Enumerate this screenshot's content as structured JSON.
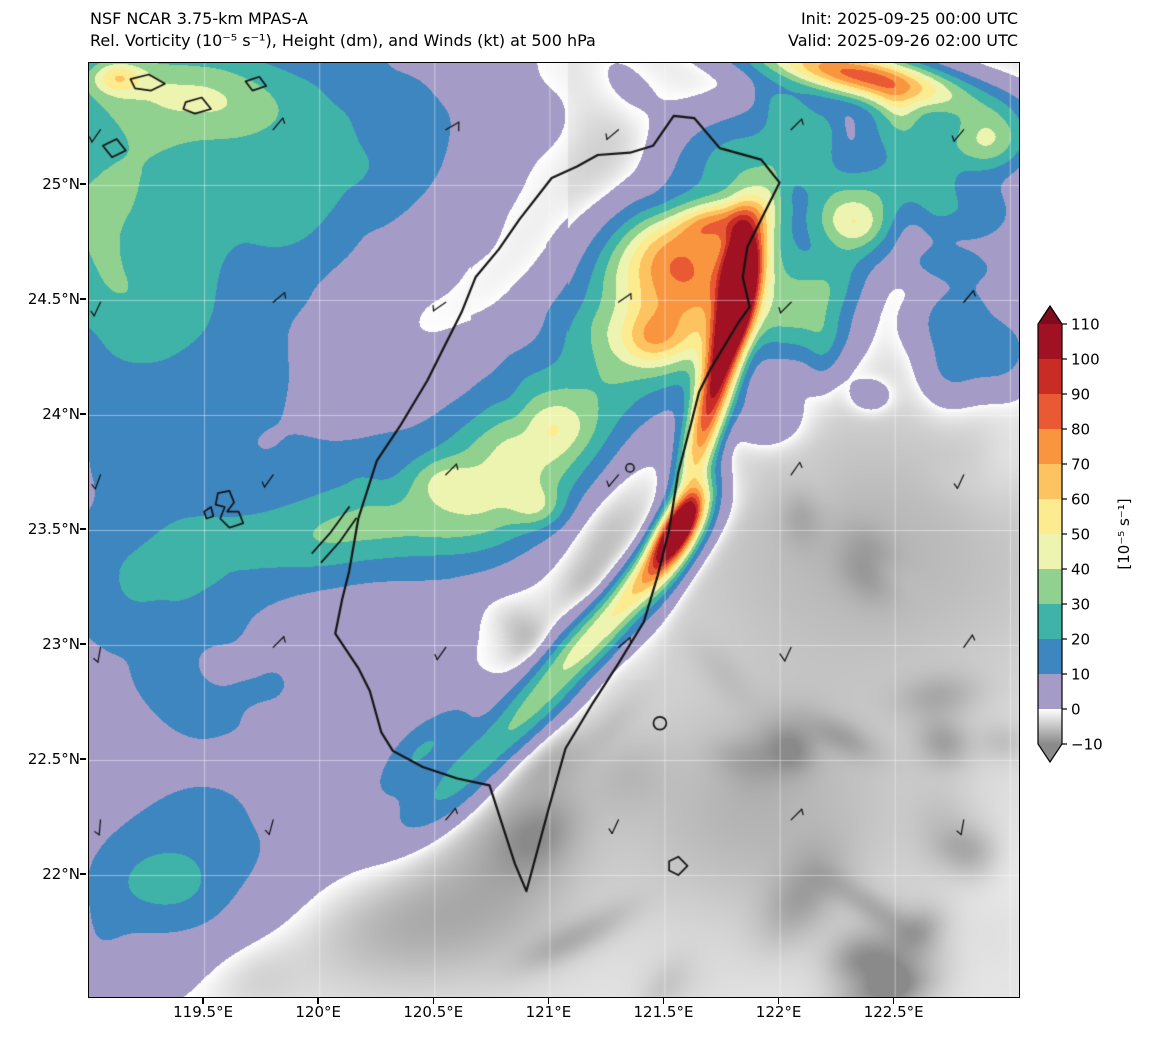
{
  "header": {
    "title_line1": "NSF NCAR 3.75-km MPAS-A",
    "title_line2": "Rel. Vorticity (10⁻⁵ s⁻¹), Height (dm), and Winds (kt) at 500 hPa",
    "init_label": "Init: 2025-09-25 00:00 UTC",
    "valid_label": "Valid: 2025-09-26 02:00 UTC"
  },
  "chart_data": {
    "type": "heatmap",
    "title": "NSF NCAR 3.75-km MPAS-A",
    "subtitle": "Rel. Vorticity (10⁻⁵ s⁻¹), Height (dm), and Winds (kt) at 500 hPa",
    "field_name": "500 hPa relative vorticity",
    "units": "10⁻⁵ s⁻¹",
    "extent": {
      "lon_min": 119.0,
      "lon_max": 123.04,
      "lat_min": 21.47,
      "lat_max": 25.53
    },
    "base_value": -2.2,
    "gray_ramp": {
      "from": -10,
      "to": 0,
      "color_from": "#8a8a8a",
      "color_to": "#ffffff"
    },
    "band_colors": [
      "#a49cc6",
      "#3e86c0",
      "#3fb3a7",
      "#90d18f",
      "#edf4b0",
      "#fdeb8f",
      "#fdc360",
      "#f9953f",
      "#e95a34",
      "#c92c25",
      "#9f1123"
    ],
    "x_axis": {
      "ticks": [
        {
          "lon": 119.5,
          "label": "119.5°E"
        },
        {
          "lon": 120.0,
          "label": "120°E"
        },
        {
          "lon": 120.5,
          "label": "120.5°E"
        },
        {
          "lon": 121.0,
          "label": "121°E"
        },
        {
          "lon": 121.5,
          "label": "121.5°E"
        },
        {
          "lon": 122.0,
          "label": "122°E"
        },
        {
          "lon": 122.5,
          "label": "122.5°E"
        }
      ]
    },
    "y_axis": {
      "ticks": [
        {
          "lat": 25.0,
          "label": "25°N"
        },
        {
          "lat": 24.5,
          "label": "24.5°N"
        },
        {
          "lat": 24.0,
          "label": "24°N"
        },
        {
          "lat": 23.5,
          "label": "23.5°N"
        },
        {
          "lat": 23.0,
          "label": "23°N"
        },
        {
          "lat": 22.5,
          "label": "22.5°N"
        },
        {
          "lat": 22.0,
          "label": "22°N"
        }
      ]
    },
    "graticule": {
      "lons": [
        119.5,
        120.0,
        120.5,
        121.0,
        121.5,
        122.0,
        122.5,
        123.0
      ],
      "lats": [
        22.0,
        22.5,
        23.0,
        23.5,
        24.0,
        24.5,
        25.0
      ],
      "color": "rgba(255,255,255,0.45)"
    },
    "colorbar": {
      "label": "[10⁻⁵ s⁻¹]",
      "tick_labels": [
        "110",
        "100",
        "90",
        "80",
        "70",
        "60",
        "50",
        "40",
        "30",
        "20",
        "10",
        "0",
        "−10"
      ],
      "tick_values": [
        110,
        100,
        90,
        80,
        70,
        60,
        50,
        40,
        30,
        20,
        10,
        0,
        -10
      ],
      "over_color": "#7e0c1c",
      "under_color": "#8a8a8a"
    },
    "field_features": [
      [
        119.25,
        25.15,
        9,
        0.95,
        0.65,
        0
      ],
      [
        119.6,
        24.85,
        7,
        0.55,
        0.5,
        0
      ],
      [
        119.35,
        24.35,
        8,
        0.55,
        0.65,
        0
      ],
      [
        119.95,
        25.35,
        7,
        0.55,
        0.28,
        10
      ],
      [
        120.35,
        25.0,
        5,
        0.35,
        0.3,
        0
      ],
      [
        119.15,
        23.3,
        8,
        0.45,
        0.55,
        0
      ],
      [
        119.45,
        22.65,
        7,
        0.4,
        0.5,
        0
      ],
      [
        119.25,
        21.95,
        8,
        0.35,
        0.3,
        0
      ],
      [
        119.85,
        22.15,
        6,
        0.4,
        0.25,
        20
      ],
      [
        120.2,
        22.9,
        7,
        0.32,
        0.26,
        0
      ],
      [
        119.85,
        23.9,
        6,
        0.4,
        0.3,
        0
      ],
      [
        119.3,
        25.44,
        20,
        0.28,
        0.12,
        0
      ],
      [
        119.05,
        25.0,
        14,
        0.22,
        0.26,
        0
      ],
      [
        119.62,
        25.33,
        13,
        0.2,
        0.12,
        0
      ],
      [
        119.13,
        24.45,
        13,
        0.26,
        0.2,
        0
      ],
      [
        119.35,
        23.35,
        12,
        0.3,
        0.14,
        20
      ],
      [
        119.33,
        21.97,
        14,
        0.2,
        0.13,
        0
      ],
      [
        119.12,
        25.47,
        30,
        0.08,
        0.05,
        0
      ],
      [
        120.12,
        23.5,
        24,
        0.32,
        0.13,
        15
      ],
      [
        121.0,
        24.0,
        22,
        0.42,
        0.23,
        25
      ],
      [
        120.85,
        23.78,
        18,
        0.28,
        0.16,
        30
      ],
      [
        120.75,
        23.58,
        20,
        0.3,
        0.18,
        30
      ],
      [
        121.03,
        23.95,
        13,
        0.1,
        0.08,
        0
      ],
      [
        120.95,
        23.6,
        16,
        0.08,
        0.06,
        0
      ],
      [
        120.52,
        23.72,
        13,
        0.09,
        0.07,
        0
      ],
      [
        121.62,
        24.55,
        70,
        0.3,
        0.22,
        20
      ],
      [
        121.5,
        24.72,
        28,
        0.16,
        0.12,
        0
      ],
      [
        121.72,
        24.84,
        38,
        0.11,
        0.06,
        10
      ],
      [
        121.45,
        24.33,
        24,
        0.11,
        0.08,
        0
      ],
      [
        121.74,
        24.2,
        100,
        0.42,
        0.055,
        75
      ],
      [
        121.82,
        24.62,
        75,
        0.18,
        0.05,
        85
      ],
      [
        121.56,
        23.52,
        105,
        0.13,
        0.05,
        55
      ],
      [
        121.45,
        23.33,
        55,
        0.2,
        0.06,
        45
      ],
      [
        121.15,
        23.0,
        42,
        0.25,
        0.07,
        42
      ],
      [
        120.85,
        22.65,
        28,
        0.25,
        0.07,
        40
      ],
      [
        120.55,
        22.35,
        18,
        0.2,
        0.08,
        38
      ],
      [
        120.45,
        22.55,
        20,
        0.22,
        0.07,
        40
      ],
      [
        122.35,
        25.48,
        85,
        0.32,
        0.07,
        -12
      ],
      [
        122.9,
        25.2,
        42,
        0.13,
        0.1,
        0
      ],
      [
        121.82,
        25.12,
        24,
        0.2,
        0.14,
        0
      ],
      [
        122.55,
        25.0,
        18,
        0.16,
        0.1,
        20
      ],
      [
        122.85,
        24.88,
        20,
        0.13,
        0.1,
        0
      ],
      [
        122.3,
        24.85,
        15,
        0.12,
        0.09,
        0
      ],
      [
        122.75,
        24.45,
        16,
        0.13,
        0.09,
        30
      ],
      [
        122.95,
        24.28,
        18,
        0.11,
        0.12,
        0
      ],
      [
        122.2,
        24.55,
        12,
        0.11,
        0.08,
        0
      ],
      [
        122.5,
        25.25,
        18,
        0.13,
        0.09,
        -20
      ],
      [
        122.05,
        25.3,
        14,
        0.12,
        0.08,
        0
      ],
      [
        122.4,
        23.4,
        -4,
        0.7,
        0.5,
        0
      ],
      [
        121.9,
        22.25,
        -4,
        0.5,
        0.35,
        0
      ],
      [
        119.95,
        24.1,
        -4,
        0.35,
        0.3,
        0
      ],
      [
        120.35,
        24.55,
        -4,
        0.3,
        0.3,
        0
      ],
      [
        121.3,
        23.7,
        -5,
        0.38,
        0.1,
        70
      ],
      [
        120.85,
        24.75,
        -4,
        0.3,
        0.25,
        0
      ],
      [
        120.3,
        21.8,
        -5,
        0.4,
        0.2,
        0
      ],
      [
        120.3,
        23.7,
        1.6,
        0.22,
        0.5,
        80
      ],
      [
        121.1,
        25.3,
        -3.5,
        0.3,
        0.2,
        0
      ],
      [
        120.8,
        22.15,
        -4,
        0.25,
        0.3,
        0
      ],
      [
        120.6,
        24.9,
        1.5,
        0.3,
        0.4,
        0
      ],
      [
        120.3,
        25.2,
        1.3,
        0.3,
        0.3,
        0
      ]
    ],
    "noise": {
      "seed": 7,
      "count": 170
    },
    "coastlines": {
      "taiwan": [
        [
          121.54,
          25.3
        ],
        [
          121.63,
          25.29
        ],
        [
          121.74,
          25.16
        ],
        [
          121.92,
          25.11
        ],
        [
          122.0,
          25.01
        ],
        [
          121.93,
          24.87
        ],
        [
          121.86,
          24.73
        ],
        [
          121.84,
          24.6
        ],
        [
          121.87,
          24.47
        ],
        [
          121.82,
          24.4
        ],
        [
          121.7,
          24.2
        ],
        [
          121.65,
          24.1
        ],
        [
          121.62,
          23.98
        ],
        [
          121.56,
          23.75
        ],
        [
          121.52,
          23.5
        ],
        [
          121.47,
          23.3
        ],
        [
          121.41,
          23.1
        ],
        [
          121.3,
          22.92
        ],
        [
          121.19,
          22.75
        ],
        [
          121.07,
          22.55
        ],
        [
          121.0,
          22.3
        ],
        [
          120.9,
          21.93
        ],
        [
          120.85,
          22.05
        ],
        [
          120.74,
          22.39
        ],
        [
          120.6,
          22.42
        ],
        [
          120.45,
          22.47
        ],
        [
          120.32,
          22.54
        ],
        [
          120.27,
          22.62
        ],
        [
          120.22,
          22.8
        ],
        [
          120.17,
          22.9
        ],
        [
          120.07,
          23.05
        ],
        [
          120.1,
          23.2
        ],
        [
          120.13,
          23.32
        ],
        [
          120.17,
          23.55
        ],
        [
          120.25,
          23.8
        ],
        [
          120.35,
          23.95
        ],
        [
          120.47,
          24.15
        ],
        [
          120.53,
          24.27
        ],
        [
          120.62,
          24.45
        ],
        [
          120.68,
          24.6
        ],
        [
          120.78,
          24.72
        ],
        [
          120.87,
          24.85
        ],
        [
          121.01,
          25.03
        ],
        [
          121.12,
          25.08
        ],
        [
          121.21,
          25.13
        ],
        [
          121.35,
          25.14
        ],
        [
          121.45,
          25.17
        ],
        [
          121.54,
          25.3
        ]
      ],
      "islets": [
        [
          [
            119.56,
            23.66
          ],
          [
            119.61,
            23.67
          ],
          [
            119.63,
            23.62
          ],
          [
            119.6,
            23.58
          ],
          [
            119.65,
            23.58
          ],
          [
            119.67,
            23.53
          ],
          [
            119.61,
            23.51
          ],
          [
            119.57,
            23.55
          ],
          [
            119.59,
            23.6
          ],
          [
            119.55,
            23.61
          ]
        ],
        [
          [
            119.5,
            23.58
          ],
          [
            119.53,
            23.6
          ],
          [
            119.54,
            23.56
          ],
          [
            119.51,
            23.55
          ]
        ],
        [
          [
            121.52,
            22.06
          ],
          [
            121.56,
            22.08
          ],
          [
            121.6,
            22.04
          ],
          [
            121.56,
            22.0
          ],
          [
            121.52,
            22.02
          ]
        ],
        [
          [
            119.18,
            25.46
          ],
          [
            119.26,
            25.48
          ],
          [
            119.33,
            25.44
          ],
          [
            119.27,
            25.41
          ],
          [
            119.2,
            25.42
          ]
        ],
        [
          [
            119.42,
            25.36
          ],
          [
            119.49,
            25.38
          ],
          [
            119.53,
            25.33
          ],
          [
            119.46,
            25.31
          ],
          [
            119.41,
            25.33
          ]
        ],
        [
          [
            119.06,
            25.17
          ],
          [
            119.12,
            25.2
          ],
          [
            119.16,
            25.15
          ],
          [
            119.1,
            25.12
          ]
        ],
        [
          [
            119.68,
            25.45
          ],
          [
            119.74,
            25.47
          ],
          [
            119.77,
            25.43
          ],
          [
            119.71,
            25.41
          ]
        ]
      ],
      "circles": [
        [
          121.48,
          22.66,
          0.028
        ]
      ]
    },
    "height_contours": {
      "segments": [
        [
          [
            119.97,
            23.4
          ],
          [
            120.05,
            23.49
          ],
          [
            120.13,
            23.6
          ]
        ],
        [
          [
            120.01,
            23.36
          ],
          [
            120.09,
            23.45
          ],
          [
            120.16,
            23.55
          ]
        ]
      ],
      "circles": [
        [
          121.35,
          23.77,
          0.018
        ]
      ]
    },
    "wind_barbs": [
      [
        119.05,
        25.24,
        215,
        5
      ],
      [
        119.8,
        25.24,
        40,
        5
      ],
      [
        120.55,
        25.24,
        60,
        10
      ],
      [
        121.3,
        25.24,
        230,
        5
      ],
      [
        122.05,
        25.24,
        45,
        5
      ],
      [
        122.8,
        25.24,
        220,
        5
      ],
      [
        119.05,
        24.49,
        205,
        5
      ],
      [
        119.8,
        24.49,
        50,
        5
      ],
      [
        120.55,
        24.49,
        235,
        5
      ],
      [
        121.3,
        24.49,
        55,
        5
      ],
      [
        122.05,
        24.49,
        225,
        5
      ],
      [
        122.8,
        24.49,
        40,
        5
      ],
      [
        119.05,
        23.74,
        200,
        5
      ],
      [
        119.8,
        23.74,
        215,
        5
      ],
      [
        120.55,
        23.74,
        45,
        5
      ],
      [
        121.3,
        23.74,
        220,
        5
      ],
      [
        122.05,
        23.74,
        35,
        5
      ],
      [
        122.8,
        23.74,
        205,
        5
      ],
      [
        119.05,
        22.99,
        190,
        5
      ],
      [
        119.8,
        22.99,
        45,
        5
      ],
      [
        120.55,
        22.99,
        215,
        5
      ],
      [
        121.3,
        22.99,
        50,
        5
      ],
      [
        122.05,
        22.99,
        205,
        10
      ],
      [
        122.8,
        22.99,
        35,
        5
      ],
      [
        119.05,
        22.24,
        185,
        5
      ],
      [
        119.8,
        22.24,
        195,
        5
      ],
      [
        120.55,
        22.24,
        40,
        5
      ],
      [
        121.3,
        22.24,
        205,
        5
      ],
      [
        122.05,
        22.24,
        45,
        5
      ],
      [
        122.8,
        22.24,
        190,
        5
      ]
    ]
  }
}
